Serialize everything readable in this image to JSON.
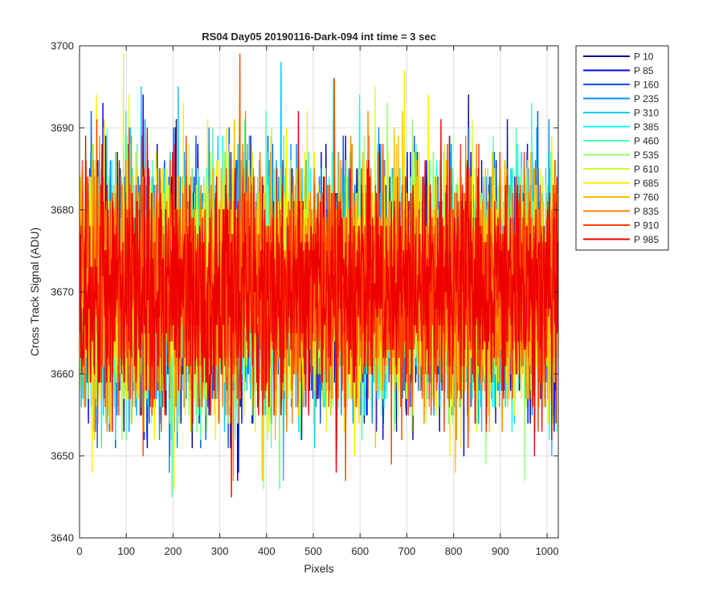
{
  "chart_data": {
    "type": "line",
    "title": "RS04 Day05 20190116-Dark-094 int time = 3 sec",
    "xlabel": "Pixels",
    "ylabel": "Cross Track Signal (ADU)",
    "xlim": [
      0,
      1024
    ],
    "ylim": [
      3640,
      3700
    ],
    "x_ticks": [
      0,
      100,
      200,
      300,
      400,
      500,
      600,
      700,
      800,
      900,
      1000
    ],
    "y_ticks": [
      3640,
      3650,
      3660,
      3670,
      3680,
      3690,
      3700
    ],
    "grid": true,
    "legend_position": "outside-top-right",
    "x": {
      "start": 1,
      "end": 1024,
      "step": 1
    },
    "noise_model": {
      "mean": 3670.5,
      "std": 7.2,
      "min_visible": 3640,
      "max_visible": 3699
    },
    "series": [
      {
        "name": "P 10",
        "color": "#00008f"
      },
      {
        "name": "P 85",
        "color": "#0000e6"
      },
      {
        "name": "P 160",
        "color": "#0050ff"
      },
      {
        "name": "P 235",
        "color": "#0090ff"
      },
      {
        "name": "P 310",
        "color": "#00c8ff"
      },
      {
        "name": "P 385",
        "color": "#10f5f0"
      },
      {
        "name": "P 460",
        "color": "#50ffb0"
      },
      {
        "name": "P 535",
        "color": "#90ff70"
      },
      {
        "name": "P 610",
        "color": "#d0ff30"
      },
      {
        "name": "P 685",
        "color": "#ffee00"
      },
      {
        "name": "P 760",
        "color": "#ffbf00"
      },
      {
        "name": "P 835",
        "color": "#ff8000"
      },
      {
        "name": "P 910",
        "color": "#ff4000"
      },
      {
        "name": "P 985",
        "color": "#ee0000"
      }
    ]
  }
}
